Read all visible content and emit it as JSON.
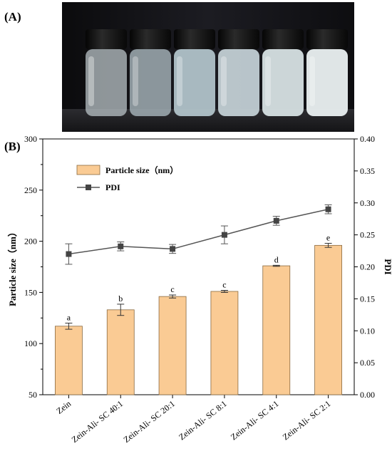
{
  "panel_a": {
    "label": "(A)"
  },
  "panel_b": {
    "label": "(B)"
  },
  "colors": {
    "bar_fill": "#FACB94",
    "bar_stroke": "#8a6a40",
    "line": "#555555",
    "marker": "#444444"
  },
  "chart_data": {
    "type": "bar",
    "categories": [
      "Zein",
      "Zein-Ali- SC 40:1",
      "Zein-Ali- SC 20:1",
      "Zein-Ali- SC 8:1",
      "Zein-Ali- SC 4:1",
      "Zein-Ali- SC 2:1"
    ],
    "series": [
      {
        "name": "Particle size（nm）",
        "type": "bar",
        "axis": "left",
        "values": [
          117,
          133,
          146,
          151,
          176,
          196
        ],
        "errors": [
          3,
          5.5,
          1.5,
          1,
          0.5,
          2
        ],
        "labels": [
          "a",
          "b",
          "c",
          "c",
          "d",
          "e"
        ]
      },
      {
        "name": "PDI",
        "type": "line",
        "axis": "right",
        "values": [
          0.22,
          0.232,
          0.228,
          0.25,
          0.272,
          0.29
        ],
        "errors": [
          0.016,
          0.007,
          0.007,
          0.014,
          0.007,
          0.007
        ]
      }
    ],
    "ylabel": "Particle size（nm）",
    "ylim": [
      50,
      300
    ],
    "yticks": [
      "50",
      "100",
      "150",
      "200",
      "250",
      "300"
    ],
    "y2label": "PDI",
    "y2lim": [
      0,
      0.4
    ],
    "y2ticks": [
      "0.00",
      "0.05",
      "0.10",
      "0.15",
      "0.20",
      "0.25",
      "0.30",
      "0.35",
      "0.40"
    ],
    "legend_position": "top-left",
    "grid": false
  }
}
